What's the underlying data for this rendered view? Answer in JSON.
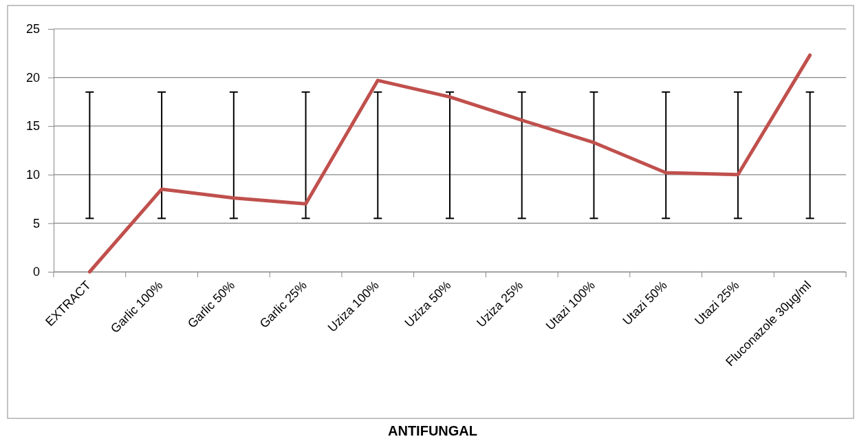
{
  "chart_data": {
    "type": "line",
    "xlabel": "ANTIFUNGAL",
    "categories": [
      "EXTRACT",
      "Garlic 100%",
      "Garlic 50%",
      "Garlic 25%",
      "Uziza 100%",
      "Uziza 50%",
      "Uziza 25%",
      "Utazi 100%",
      "Utazi 50%",
      "Utazi 25%",
      "Fluconazole 30µg/ml"
    ],
    "series": [
      {
        "color": "#c0504d",
        "values": [
          0,
          8.5,
          7.6,
          7.0,
          19.7,
          18.0,
          15.6,
          13.3,
          10.2,
          10.0,
          22.3
        ],
        "errors": [
          [
            5.5,
            18.5
          ],
          [
            5.5,
            18.5
          ],
          [
            5.5,
            18.5
          ],
          [
            5.5,
            18.5
          ],
          [
            5.5,
            18.5
          ],
          [
            5.5,
            18.5
          ],
          [
            5.5,
            18.5
          ],
          [
            5.5,
            18.5
          ],
          [
            5.5,
            18.5
          ],
          [
            5.5,
            18.5
          ],
          [
            5.5,
            18.5
          ]
        ]
      }
    ],
    "ylim": [
      0,
      25
    ],
    "yticks": [
      0,
      5,
      10,
      15,
      20,
      25
    ],
    "grid": "y",
    "marker": "none",
    "line_style": "solid"
  }
}
